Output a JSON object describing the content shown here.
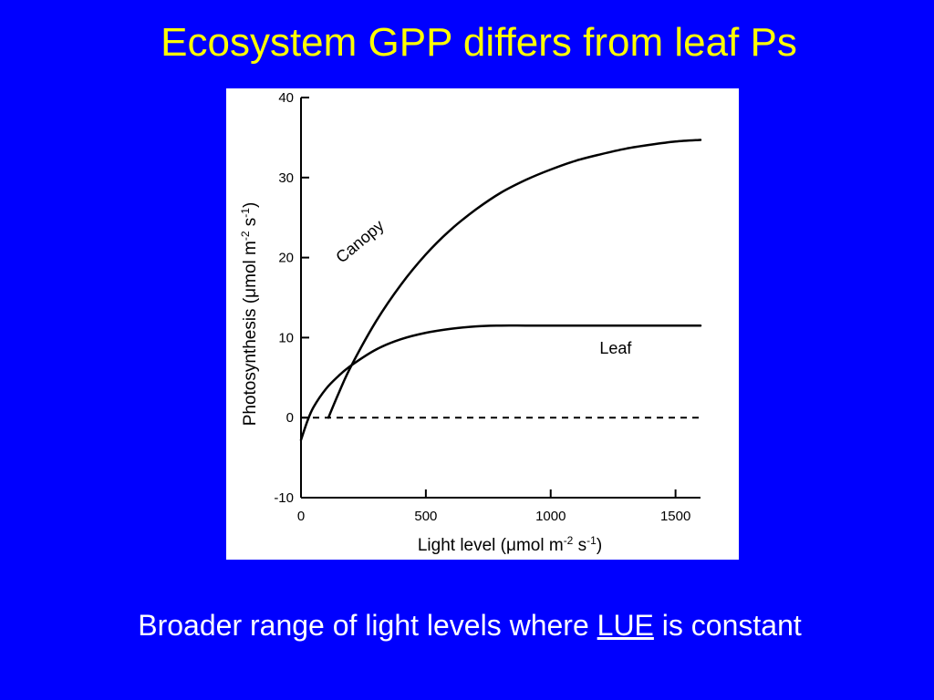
{
  "slide": {
    "title": "Ecosystem GPP differs from leaf Ps",
    "caption_before": "Broader range of light levels where ",
    "caption_link": "LUE",
    "caption_after": " is constant",
    "title_color": "#ffff00",
    "background_color": "#0000ff"
  },
  "chart_data": {
    "type": "line",
    "title": "",
    "xlabel": "Light level (μmol m-2 s-1)",
    "xlabel_parts": {
      "main": "Light level (",
      "mu": "μ",
      "unit": "mol m",
      "exp1": "-2",
      "mid": " s",
      "exp2": "-1",
      "end": ")"
    },
    "ylabel": "Photosynthesis (μmol m-2 s-1)",
    "ylabel_parts": {
      "main": "Photosynthesis (",
      "mu": "μ",
      "unit": "mol m",
      "exp1": "-2",
      "mid": " s",
      "exp2": "-1",
      "end": ")"
    },
    "xlim": [
      0,
      1600
    ],
    "ylim": [
      -10,
      40
    ],
    "x_ticks": [
      "0",
      "500",
      "1000",
      "1500"
    ],
    "x_tick_values": [
      0,
      500,
      1000,
      1500
    ],
    "y_ticks": [
      "-10",
      "0",
      "10",
      "20",
      "30",
      "40"
    ],
    "y_tick_values": [
      -10,
      0,
      10,
      20,
      30,
      40
    ],
    "grid": false,
    "series": [
      {
        "name": "Canopy",
        "x": [
          110,
          150,
          200,
          300,
          400,
          500,
          600,
          700,
          800,
          900,
          1000,
          1100,
          1200,
          1300,
          1400,
          1500,
          1600
        ],
        "values": [
          0,
          3.0,
          6.4,
          12.0,
          16.6,
          20.4,
          23.5,
          26.0,
          28.1,
          29.7,
          31.0,
          32.1,
          32.9,
          33.6,
          34.1,
          34.5,
          34.7
        ]
      },
      {
        "name": "Leaf",
        "x": [
          0,
          25,
          50,
          100,
          150,
          200,
          300,
          400,
          500,
          600,
          700,
          800,
          900,
          1000,
          1200,
          1400,
          1600
        ],
        "values": [
          -2.8,
          -0.5,
          1.3,
          3.6,
          5.2,
          6.5,
          8.5,
          9.8,
          10.6,
          11.1,
          11.4,
          11.5,
          11.5,
          11.5,
          11.5,
          11.5,
          11.5
        ]
      }
    ],
    "reference_line": {
      "y": 0,
      "style": "dashed"
    },
    "annotations": [
      {
        "text": "Canopy",
        "x": 250,
        "y": 21.5,
        "rotation_deg": -40
      },
      {
        "text": "Leaf",
        "x": 1260,
        "y": 8,
        "rotation_deg": 0
      }
    ]
  }
}
